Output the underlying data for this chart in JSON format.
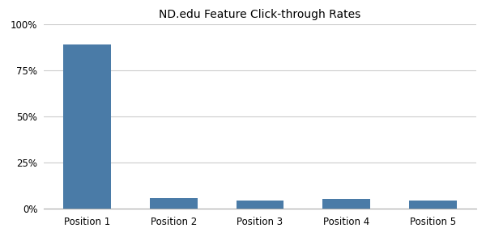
{
  "title": "ND.edu Feature Click-through Rates",
  "categories": [
    "Position 1",
    "Position 2",
    "Position 3",
    "Position 4",
    "Position 5"
  ],
  "values": [
    0.89,
    0.055,
    0.04,
    0.05,
    0.04
  ],
  "bar_color": "#4a7ba7",
  "ylim": [
    0,
    1.0
  ],
  "yticks": [
    0,
    0.25,
    0.5,
    0.75,
    1.0
  ],
  "ytick_labels": [
    "0%",
    "25%",
    "50%",
    "75%",
    "100%"
  ],
  "background_color": "#ffffff",
  "grid_color": "#cccccc",
  "title_fontsize": 10,
  "tick_fontsize": 8.5,
  "bar_width": 0.55
}
